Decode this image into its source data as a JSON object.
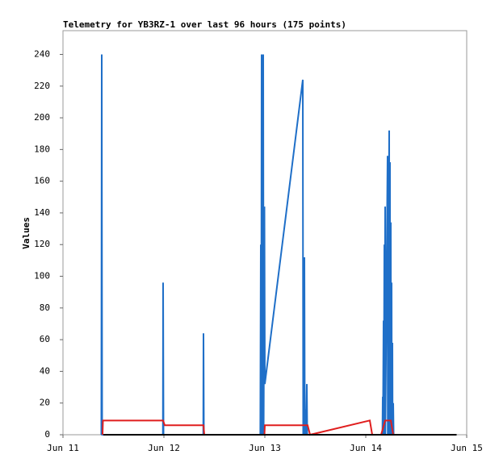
{
  "chart_data": {
    "type": "line",
    "title": "Telemetry for YB3RZ-1 over last 96 hours (175 points)",
    "y_label": "Values",
    "xlim": [
      0,
      4
    ],
    "xticks": [
      {
        "value": 0,
        "label": "Jun 11"
      },
      {
        "value": 1,
        "label": "Jun 12"
      },
      {
        "value": 2,
        "label": "Jun 13"
      },
      {
        "value": 3,
        "label": "Jun 14"
      },
      {
        "value": 4,
        "label": "Jun 15"
      }
    ],
    "ylim": [
      0,
      255
    ],
    "yticks": [
      0,
      20,
      40,
      60,
      80,
      100,
      120,
      140,
      160,
      180,
      200,
      220,
      240
    ],
    "series": [
      {
        "color": "#1f6fc8",
        "x": [
          0.38,
          0.384,
          0.388,
          0.99,
          0.992,
          0.996,
          1.39,
          1.392,
          1.396,
          1.955,
          1.96,
          1.964,
          1.968,
          1.972,
          1.984,
          1.988,
          1.996,
          2.0,
          2.376,
          2.38,
          2.392,
          2.396,
          2.4,
          2.408,
          2.416,
          2.42,
          3.165,
          3.168,
          3.17,
          3.176,
          3.178,
          3.184,
          3.186,
          3.192,
          3.194,
          3.216,
          3.218,
          3.232,
          3.234,
          3.24,
          3.242,
          3.248,
          3.25,
          3.256,
          3.258,
          3.264,
          3.266,
          3.272,
          3.276
        ],
        "values": [
          0,
          240,
          0,
          0,
          96,
          0,
          0,
          64,
          0,
          0,
          120,
          0,
          240,
          0,
          240,
          0,
          144,
          32,
          224,
          0,
          112,
          0,
          16,
          0,
          32,
          0,
          0,
          24,
          0,
          72,
          0,
          120,
          0,
          144,
          0,
          176,
          0,
          192,
          0,
          172,
          0,
          134,
          0,
          96,
          0,
          58,
          0,
          20,
          0
        ]
      },
      {
        "color": "#e01e1e",
        "x": [
          0.392,
          0.396,
          0.992,
          1.008,
          1.392,
          1.4,
          1.996,
          2.0,
          2.424,
          2.448,
          3.04,
          3.064,
          3.152,
          3.192,
          3.248,
          3.272
        ],
        "values": [
          0,
          9,
          9,
          6,
          6,
          0,
          0,
          6,
          6,
          0,
          9,
          0,
          0,
          9,
          9,
          0
        ]
      },
      {
        "color": "#000000",
        "x": [
          0.4,
          3.9
        ],
        "values": [
          0,
          0
        ]
      }
    ]
  }
}
